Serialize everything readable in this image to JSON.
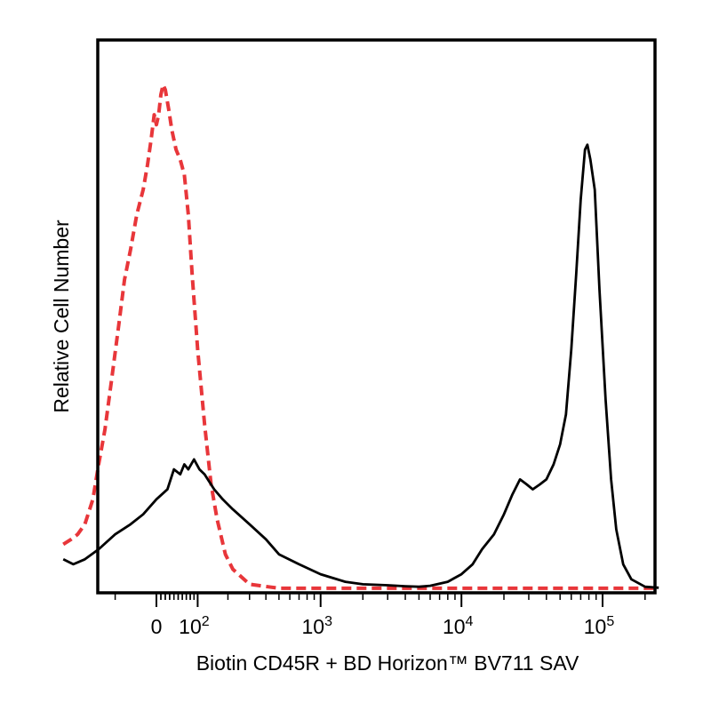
{
  "chart_data": {
    "type": "line",
    "title": "",
    "xlabel": "Biotin CD45R + BD Horizon™ BV711 SAV",
    "ylabel": "Relative Cell Number",
    "x_scale": "biexponential",
    "x_tick_labels": [
      {
        "value": 0,
        "label": "0"
      },
      {
        "value": 100,
        "base": "10",
        "exp": "2"
      },
      {
        "value": 1000,
        "base": "10",
        "exp": "3"
      },
      {
        "value": 10000,
        "base": "10",
        "exp": "4"
      },
      {
        "value": 100000,
        "base": "10",
        "exp": "5"
      }
    ],
    "xlim": [
      -300,
      250000
    ],
    "ylim": [
      0,
      100
    ],
    "grid": false,
    "series": [
      {
        "style": "dashed",
        "color": "#e8363a",
        "points": [
          [
            -300,
            9
          ],
          [
            -260,
            10
          ],
          [
            -230,
            11
          ],
          [
            -200,
            13
          ],
          [
            -170,
            18
          ],
          [
            -150,
            25
          ],
          [
            -130,
            32
          ],
          [
            -110,
            42
          ],
          [
            -90,
            53
          ],
          [
            -75,
            62
          ],
          [
            -60,
            68
          ],
          [
            -45,
            75
          ],
          [
            -30,
            80
          ],
          [
            -20,
            85
          ],
          [
            -12,
            90
          ],
          [
            -5,
            95
          ],
          [
            0,
            93
          ],
          [
            5,
            95
          ],
          [
            10,
            99
          ],
          [
            15,
            101
          ],
          [
            20,
            100
          ],
          [
            28,
            96
          ],
          [
            35,
            92
          ],
          [
            45,
            88
          ],
          [
            55,
            86
          ],
          [
            65,
            83
          ],
          [
            75,
            75
          ],
          [
            85,
            63
          ],
          [
            100,
            48
          ],
          [
            120,
            33
          ],
          [
            140,
            21
          ],
          [
            160,
            14
          ],
          [
            190,
            7
          ],
          [
            220,
            4
          ],
          [
            300,
            1
          ],
          [
            500,
            0.2
          ],
          [
            1000,
            0.2
          ],
          [
            10000,
            0.2
          ],
          [
            100000,
            0.2
          ],
          [
            250000,
            0.2
          ]
        ]
      },
      {
        "style": "solid",
        "color": "#000000",
        "points": [
          [
            -300,
            6
          ],
          [
            -250,
            5
          ],
          [
            -200,
            6
          ],
          [
            -150,
            8
          ],
          [
            -100,
            11
          ],
          [
            -60,
            13
          ],
          [
            -30,
            15
          ],
          [
            0,
            18
          ],
          [
            25,
            20
          ],
          [
            40,
            24
          ],
          [
            55,
            23
          ],
          [
            65,
            25
          ],
          [
            75,
            24
          ],
          [
            90,
            26
          ],
          [
            105,
            24
          ],
          [
            120,
            23
          ],
          [
            150,
            20
          ],
          [
            180,
            18
          ],
          [
            220,
            16
          ],
          [
            300,
            13
          ],
          [
            400,
            10
          ],
          [
            500,
            7
          ],
          [
            700,
            5
          ],
          [
            1000,
            3
          ],
          [
            1500,
            1.5
          ],
          [
            2000,
            1
          ],
          [
            3000,
            0.8
          ],
          [
            4000,
            0.6
          ],
          [
            5000,
            0.5
          ],
          [
            6000,
            0.7
          ],
          [
            8000,
            1.5
          ],
          [
            10000,
            3
          ],
          [
            12000,
            5
          ],
          [
            14000,
            8
          ],
          [
            17000,
            11
          ],
          [
            20000,
            15
          ],
          [
            23000,
            19
          ],
          [
            26000,
            22
          ],
          [
            29000,
            21
          ],
          [
            32000,
            20
          ],
          [
            36000,
            21
          ],
          [
            40000,
            22
          ],
          [
            45000,
            25
          ],
          [
            50000,
            29
          ],
          [
            55000,
            35
          ],
          [
            60000,
            48
          ],
          [
            65000,
            63
          ],
          [
            70000,
            78
          ],
          [
            75000,
            88
          ],
          [
            78000,
            89
          ],
          [
            82000,
            86
          ],
          [
            88000,
            80
          ],
          [
            95000,
            60
          ],
          [
            105000,
            38
          ],
          [
            115000,
            22
          ],
          [
            125000,
            12
          ],
          [
            140000,
            5
          ],
          [
            160000,
            2
          ],
          [
            200000,
            0.5
          ],
          [
            250000,
            0.3
          ]
        ]
      }
    ]
  }
}
